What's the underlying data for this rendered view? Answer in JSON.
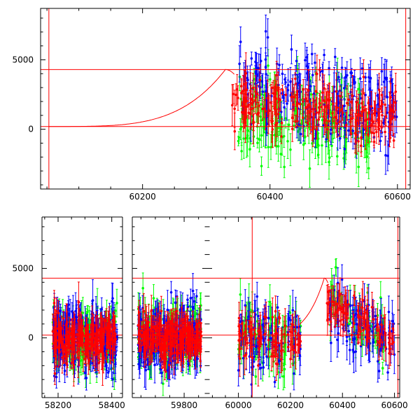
{
  "chart_data": [
    {
      "type": "scatter",
      "title": "",
      "xlabel": "",
      "ylabel": "",
      "xlim": [
        60040,
        60620
      ],
      "ylim": [
        -4300,
        8700
      ],
      "x_ticks": [
        60200,
        60400,
        60600
      ],
      "y_ticks": [
        0,
        5000
      ],
      "grid": false,
      "reference_lines": {
        "horizontal": [
          200,
          4300
        ],
        "vertical": [
          60053,
          60613
        ]
      },
      "model_curve": {
        "color": "#ff0000",
        "description_points": [
          [
            60040,
            200
          ],
          [
            60150,
            280
          ],
          [
            60230,
            700
          ],
          [
            60280,
            2200
          ],
          [
            60310,
            3800
          ],
          [
            60330,
            4300
          ],
          [
            60345,
            4100
          ]
        ]
      },
      "series": [
        {
          "color": "#00ff00",
          "x_range": [
            60350,
            60560
          ],
          "y_center": 600,
          "spread": 2600
        },
        {
          "color": "#0000ff",
          "x_range": [
            60350,
            60600
          ],
          "y_center": 2200,
          "spread": 2800
        },
        {
          "color": "#ff0000",
          "x_range": [
            60340,
            60600
          ],
          "y_center": 1400,
          "spread": 1900
        }
      ]
    },
    {
      "type": "scatter",
      "title": "",
      "xlabel": "",
      "ylabel": "",
      "ylim": [
        -4300,
        8700
      ],
      "y_ticks": [
        0,
        5000
      ],
      "grid": false,
      "panels": [
        {
          "xlim": [
            58140,
            58440
          ],
          "x_ticks": [
            58200,
            58400
          ]
        },
        {
          "xlim": [
            59620,
            59880
          ],
          "x_ticks": [
            59800
          ]
        },
        {
          "xlim": [
            59880,
            60620
          ],
          "x_ticks": [
            60000,
            60200,
            60400,
            60600
          ]
        }
      ],
      "reference_lines": {
        "horizontal": [
          200,
          4300
        ],
        "vertical": [
          60053,
          60613
        ]
      },
      "model_curve": {
        "color": "#ff0000",
        "description_points": [
          [
            60230,
            250
          ],
          [
            60280,
            2200
          ],
          [
            60310,
            3800
          ],
          [
            60330,
            4300
          ],
          [
            60345,
            4100
          ]
        ]
      },
      "series": [
        {
          "color": "#00ff00",
          "segments": [
            [
              58180,
              58420
            ],
            [
              59640,
              59860
            ],
            [
              60000,
              60240
            ],
            [
              60350,
              60560
            ]
          ]
        },
        {
          "color": "#0000ff",
          "segments": [
            [
              58180,
              58420
            ],
            [
              59640,
              59860
            ],
            [
              60000,
              60240
            ],
            [
              60350,
              60600
            ]
          ]
        },
        {
          "color": "#ff0000",
          "segments": [
            [
              58180,
              58420
            ],
            [
              59640,
              59860
            ],
            [
              60000,
              60240
            ],
            [
              60340,
              60600
            ]
          ]
        }
      ]
    }
  ]
}
